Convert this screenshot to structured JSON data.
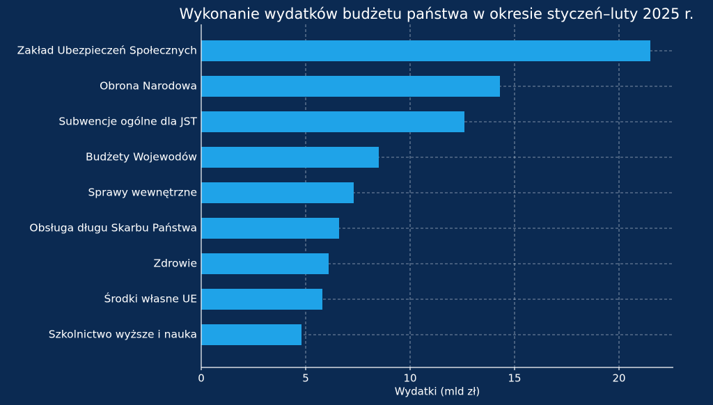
{
  "chart_data": {
    "type": "barh",
    "title": "Wykonanie wydatków budżetu państwa w okresie styczeń–luty 2025 r.",
    "x_label": "Wydatki (mld zł)",
    "categories": [
      "Zakład Ubezpieczeń Społecznych",
      "Obrona Narodowa",
      "Subwencje ogólne dla JST",
      "Budżety Wojewodów",
      "Sprawy wewnętrzne",
      "Obsługa długu Skarbu Państwa",
      "Zdrowie",
      "Środki własne UE",
      "Szkolnictwo wyższe i nauka"
    ],
    "values": [
      21.5,
      14.3,
      12.6,
      8.5,
      7.3,
      6.6,
      6.1,
      5.8,
      4.8
    ],
    "color": "#1fa3e8",
    "xlim": [
      0,
      22.6
    ],
    "xticks": [
      0,
      5,
      10,
      15,
      20
    ],
    "grid": true
  }
}
